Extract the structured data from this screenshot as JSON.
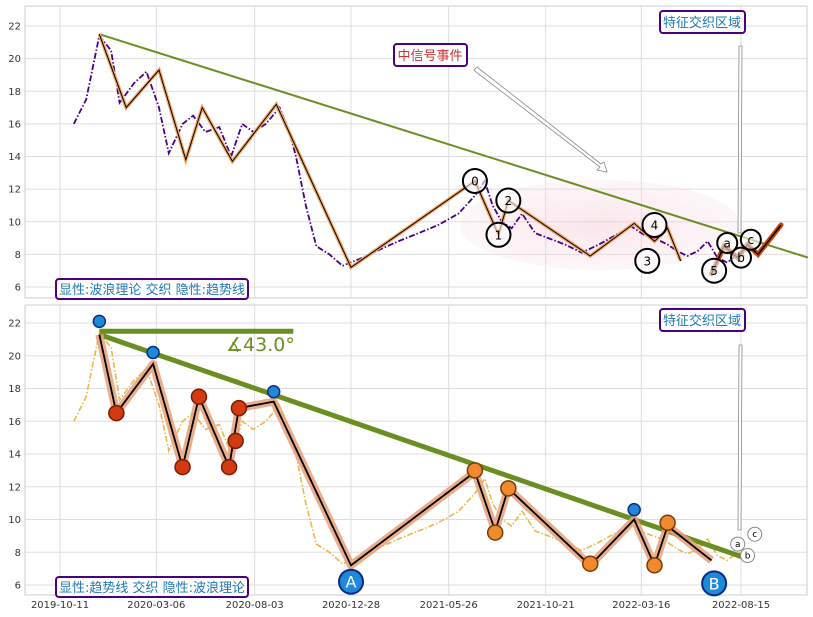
{
  "chart_data": [
    {
      "type": "line",
      "panel": "top",
      "title": "",
      "xlabel": "",
      "ylabel": "",
      "ylim": [
        5.5,
        23
      ],
      "xlim": [
        "2019-10-11",
        "2022-11-30"
      ],
      "y_ticks": [
        6,
        8,
        10,
        12,
        14,
        16,
        18,
        20,
        22
      ],
      "grid": true,
      "annotations": {
        "region_label": "特征交织区域",
        "event_label": "中信号事件",
        "legend_label": "显性:波浪理论 交织 隐性:趋势线"
      },
      "series": [
        {
          "role": "price",
          "color": "#4b0082",
          "x": [
            "2019-11-01",
            "2019-11-20",
            "2019-12-10",
            "2019-12-28",
            "2020-01-10",
            "2020-02-01",
            "2020-02-20",
            "2020-03-10",
            "2020-03-25",
            "2020-04-15",
            "2020-05-01",
            "2020-05-20",
            "2020-06-10",
            "2020-06-28",
            "2020-07-15",
            "2020-08-01",
            "2020-08-20",
            "2020-09-10",
            "2020-09-25",
            "2020-10-05",
            "2020-10-20",
            "2020-11-05",
            "2020-11-25",
            "2020-12-15",
            "2021-01-15",
            "2021-02-10",
            "2021-03-10",
            "2021-04-10",
            "2021-05-10",
            "2021-06-10",
            "2021-07-05",
            "2021-07-20",
            "2021-08-01",
            "2021-08-15",
            "2021-08-30",
            "2021-09-15",
            "2021-10-05",
            "2021-10-25",
            "2021-11-20",
            "2021-12-15",
            "2022-01-10",
            "2022-02-10",
            "2022-03-01",
            "2022-03-20",
            "2022-04-10",
            "2022-04-25",
            "2022-05-10",
            "2022-05-25",
            "2022-06-10",
            "2022-06-25",
            "2022-07-10",
            "2022-07-25",
            "2022-08-10",
            "2022-08-20"
          ],
          "values": [
            16.0,
            17.5,
            21.4,
            20.5,
            17.3,
            18.5,
            19.2,
            17.0,
            14.2,
            16.0,
            16.5,
            15.5,
            15.8,
            14.0,
            16.0,
            15.5,
            16.0,
            17.0,
            15.5,
            14.0,
            11.0,
            8.5,
            8.0,
            7.3,
            7.8,
            8.3,
            8.8,
            9.3,
            9.8,
            10.5,
            11.6,
            12.5,
            11.0,
            10.0,
            9.6,
            10.5,
            9.3,
            9.0,
            8.6,
            8.1,
            8.6,
            9.3,
            9.7,
            9.2,
            8.9,
            8.6,
            8.2,
            7.9,
            8.2,
            8.8,
            7.8,
            7.5,
            8.0,
            7.9
          ]
        },
        {
          "role": "trendline",
          "color": "#6b8e23",
          "x": [
            "2019-12-10",
            "2022-11-25"
          ],
          "values": [
            21.5,
            7.8
          ]
        },
        {
          "role": "wave",
          "color": "#f4a460",
          "x": [
            "2019-12-10",
            "2020-01-20",
            "2020-03-10",
            "2020-04-20",
            "2020-05-15",
            "2020-06-30",
            "2020-09-05",
            "2020-12-28",
            "2021-07-05",
            "2021-08-10",
            "2021-08-25",
            "2021-12-28",
            "2022-03-05",
            "2022-04-05",
            "2022-04-25",
            "2022-05-15"
          ],
          "values": [
            21.5,
            17.0,
            19.3,
            13.8,
            17.0,
            13.7,
            17.2,
            7.2,
            12.5,
            9.2,
            11.3,
            7.9,
            9.9,
            8.8,
            9.6,
            7.6
          ]
        },
        {
          "role": "subwave",
          "color": "#cc4400",
          "x": [
            "2022-07-01",
            "2022-07-20",
            "2022-08-10",
            "2022-08-25",
            "2022-09-10",
            "2022-10-15"
          ],
          "values": [
            6.8,
            8.5,
            7.8,
            8.6,
            8.0,
            9.8
          ]
        }
      ],
      "wave_labels": [
        {
          "label": "0",
          "x": "2021-07-05",
          "y": 12.5
        },
        {
          "label": "1",
          "x": "2021-08-10",
          "y": 9.2
        },
        {
          "label": "2",
          "x": "2021-08-25",
          "y": 11.3
        },
        {
          "label": "3",
          "x": "2022-03-25",
          "y": 7.6
        },
        {
          "label": "4",
          "x": "2022-04-05",
          "y": 9.8
        },
        {
          "label": "5",
          "x": "2022-07-05",
          "y": 7.0
        },
        {
          "label": "a",
          "x": "2022-07-25",
          "y": 8.7
        },
        {
          "label": "b",
          "x": "2022-08-15",
          "y": 7.8
        },
        {
          "label": "c",
          "x": "2022-08-30",
          "y": 8.9
        }
      ]
    },
    {
      "type": "line",
      "panel": "bottom",
      "title": "",
      "xlabel": "",
      "ylabel": "",
      "ylim": [
        5.5,
        23
      ],
      "xlim": [
        "2019-10-11",
        "2022-11-30"
      ],
      "y_ticks": [
        6,
        8,
        10,
        12,
        14,
        16,
        18,
        20,
        22
      ],
      "x_ticks": [
        "2019-10-11",
        "2020-03-06",
        "2020-08-03",
        "2020-12-28",
        "2021-05-26",
        "2021-10-21",
        "2022-03-16",
        "2022-08-15"
      ],
      "grid": true,
      "annotations": {
        "region_label": "特征交织区域",
        "angle_label": "∡43.0°",
        "legend_label": "显性:趋势线 交织 隐性:波浪理论",
        "point_A": "A",
        "point_B": "B"
      },
      "series": [
        {
          "role": "price",
          "color": "#e8b84a",
          "x": [
            "2019-11-01",
            "2019-11-20",
            "2019-12-10",
            "2019-12-28",
            "2020-01-10",
            "2020-02-01",
            "2020-02-20",
            "2020-03-10",
            "2020-03-25",
            "2020-04-15",
            "2020-05-01",
            "2020-05-20",
            "2020-06-10",
            "2020-06-28",
            "2020-07-15",
            "2020-08-01",
            "2020-08-20",
            "2020-09-10",
            "2020-09-25",
            "2020-10-05",
            "2020-10-20",
            "2020-11-05",
            "2020-11-25",
            "2020-12-15",
            "2021-01-15",
            "2021-02-10",
            "2021-03-10",
            "2021-04-10",
            "2021-05-10",
            "2021-06-10",
            "2021-07-05",
            "2021-07-20",
            "2021-08-01",
            "2021-08-15",
            "2021-08-30",
            "2021-09-15",
            "2021-10-05",
            "2021-10-25",
            "2021-11-20",
            "2021-12-15",
            "2022-01-10",
            "2022-02-10",
            "2022-03-01",
            "2022-03-20",
            "2022-04-10",
            "2022-04-25",
            "2022-05-10",
            "2022-05-25",
            "2022-06-10",
            "2022-06-25",
            "2022-07-10",
            "2022-07-25",
            "2022-08-10",
            "2022-08-20"
          ],
          "values": [
            16.0,
            17.5,
            21.4,
            20.5,
            17.3,
            18.5,
            19.2,
            17.0,
            14.2,
            16.0,
            16.5,
            15.5,
            15.8,
            14.0,
            16.0,
            15.5,
            16.0,
            17.0,
            15.5,
            14.0,
            11.0,
            8.5,
            8.0,
            7.3,
            7.8,
            8.3,
            8.8,
            9.3,
            9.8,
            10.5,
            11.6,
            12.5,
            11.0,
            10.0,
            9.6,
            10.5,
            9.3,
            9.0,
            8.6,
            8.1,
            8.6,
            9.3,
            9.7,
            9.2,
            8.9,
            8.6,
            8.2,
            7.9,
            8.2,
            8.8,
            7.8,
            7.5,
            8.0,
            7.9
          ]
        },
        {
          "role": "trendline",
          "color": "#6b8e23",
          "x": [
            "2019-12-10",
            "2022-08-25"
          ],
          "values": [
            21.3,
            7.6
          ]
        },
        {
          "role": "wave",
          "color": "#000000",
          "x": [
            "2019-12-10",
            "2020-01-05",
            "2020-03-01",
            "2020-04-15",
            "2020-05-10",
            "2020-06-25",
            "2020-07-10",
            "2020-09-01",
            "2020-12-28",
            "2021-07-05",
            "2021-08-05",
            "2021-08-25",
            "2021-12-28",
            "2022-03-05",
            "2022-04-05",
            "2022-04-25",
            "2022-07-01"
          ],
          "values": [
            21.3,
            16.5,
            19.5,
            13.2,
            17.5,
            13.2,
            16.8,
            17.2,
            7.2,
            12.9,
            9.3,
            11.9,
            7.2,
            10.0,
            7.2,
            9.6,
            7.5
          ]
        }
      ],
      "markers": [
        {
          "kind": "blue",
          "x": "2019-12-10",
          "y": 22.1
        },
        {
          "kind": "blue",
          "x": "2020-03-01",
          "y": 20.2
        },
        {
          "kind": "blue",
          "x": "2020-09-01",
          "y": 17.8
        },
        {
          "kind": "blue",
          "x": "2022-03-05",
          "y": 10.6
        },
        {
          "kind": "red",
          "x": "2020-01-05",
          "y": 16.5
        },
        {
          "kind": "red",
          "x": "2020-04-15",
          "y": 13.2
        },
        {
          "kind": "red",
          "x": "2020-05-10",
          "y": 17.5
        },
        {
          "kind": "red",
          "x": "2020-06-25",
          "y": 13.2
        },
        {
          "kind": "red",
          "x": "2020-07-10",
          "y": 16.8
        },
        {
          "kind": "red",
          "x": "2020-07-05",
          "y": 14.8
        },
        {
          "kind": "orange",
          "x": "2021-07-05",
          "y": 13.0
        },
        {
          "kind": "orange",
          "x": "2021-08-05",
          "y": 9.2
        },
        {
          "kind": "orange",
          "x": "2021-08-25",
          "y": 11.9
        },
        {
          "kind": "orange",
          "x": "2021-12-28",
          "y": 7.3
        },
        {
          "kind": "orange",
          "x": "2022-04-05",
          "y": 7.2
        },
        {
          "kind": "orange",
          "x": "2022-04-25",
          "y": 9.8
        }
      ],
      "small_labels": [
        {
          "label": "a",
          "x": "2022-08-10",
          "y": 8.5
        },
        {
          "label": "b",
          "x": "2022-08-25",
          "y": 7.8
        },
        {
          "label": "c",
          "x": "2022-09-05",
          "y": 9.1
        }
      ],
      "big_points": [
        {
          "label": "A",
          "x": "2020-12-28",
          "y": 6.2
        },
        {
          "label": "B",
          "x": "2022-07-05",
          "y": 6.1
        }
      ],
      "angle_line": {
        "x": [
          "2019-12-10",
          "2020-10-01"
        ],
        "y": [
          21.5,
          21.5
        ]
      }
    }
  ]
}
